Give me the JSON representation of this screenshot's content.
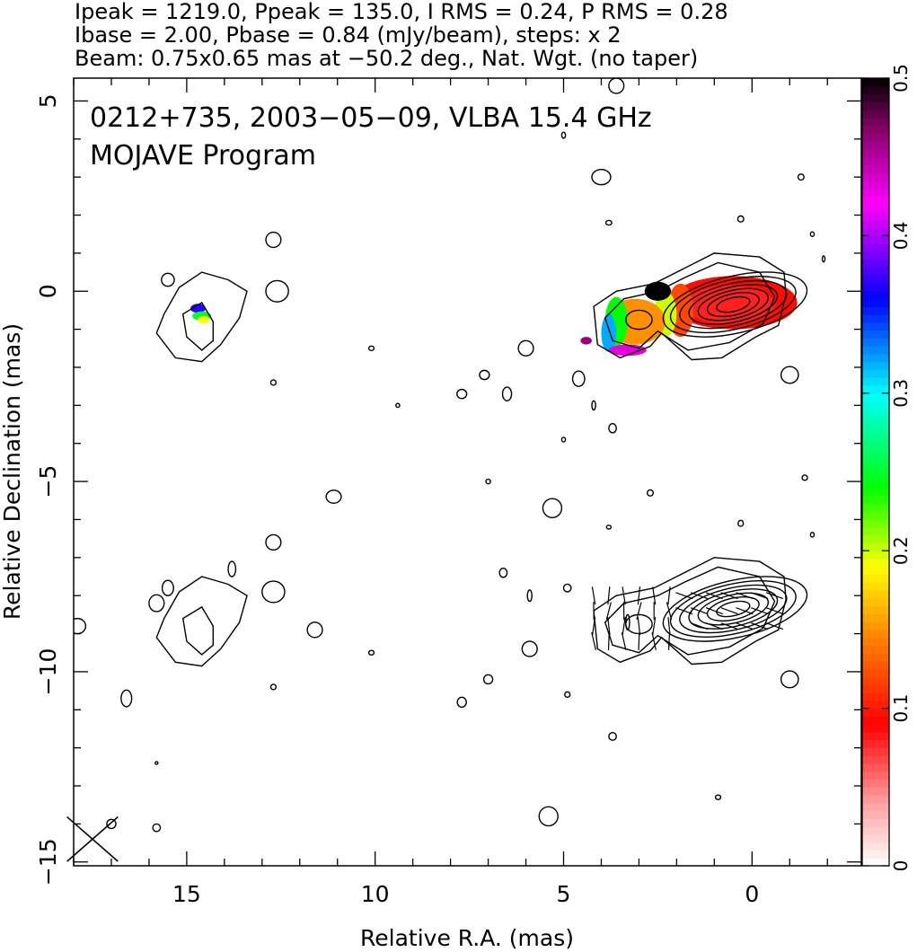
{
  "header": {
    "line1": "Ipeak = 1219.0, Ppeak = 135.0, I RMS = 0.24, P RMS = 0.28",
    "line2": "Ibase = 2.00, Pbase = 0.84 (mJy/beam), steps: x 2",
    "line3": "Beam: 0.75x0.65 mas at −50.2 deg., Nat. Wgt. (no taper)"
  },
  "annotations": {
    "source": "0212+735, 2003−05−09, VLBA 15.4 GHz",
    "program": "MOJAVE Program"
  },
  "chart_data": {
    "type": "heatmap",
    "xlabel": "Relative R.A. (mas)",
    "ylabel": "Relative Declination (mas)",
    "xlim": [
      18,
      -2.9
    ],
    "ylim": [
      -15.1,
      5.6
    ],
    "x_ticks": [
      {
        "value": 15,
        "label": "15"
      },
      {
        "value": 10,
        "label": "10"
      },
      {
        "value": 5,
        "label": "5"
      },
      {
        "value": 0,
        "label": "0"
      }
    ],
    "y_ticks": [
      {
        "value": 5,
        "label": "5"
      },
      {
        "value": 0,
        "label": "0"
      },
      {
        "value": -5,
        "label": "−5"
      },
      {
        "value": -10,
        "label": "−10"
      },
      {
        "value": -15,
        "label": "−15"
      }
    ],
    "colorbar": {
      "range": [
        0,
        0.5
      ],
      "ticks": [
        {
          "value": 0,
          "label": "0"
        },
        {
          "value": 0.1,
          "label": "0.1"
        },
        {
          "value": 0.2,
          "label": "0.2"
        },
        {
          "value": 0.3,
          "label": "0.3"
        },
        {
          "value": 0.4,
          "label": "0.4"
        },
        {
          "value": 0.5,
          "label": "0.5"
        }
      ],
      "stops": [
        {
          "v": 0.0,
          "color": "#ffffff"
        },
        {
          "v": 0.04,
          "color": "#ffa0a0"
        },
        {
          "v": 0.09,
          "color": "#ff0000"
        },
        {
          "v": 0.15,
          "color": "#ff9000"
        },
        {
          "v": 0.19,
          "color": "#ffff00"
        },
        {
          "v": 0.24,
          "color": "#00ff00"
        },
        {
          "v": 0.3,
          "color": "#00ffff"
        },
        {
          "v": 0.36,
          "color": "#0000ff"
        },
        {
          "v": 0.42,
          "color": "#ff00ff"
        },
        {
          "v": 0.47,
          "color": "#800060"
        },
        {
          "v": 0.5,
          "color": "#000000"
        }
      ]
    },
    "panels": [
      {
        "name": "fractional polarization",
        "core": [
          0.4,
          -0.35
        ],
        "offset_dec": 0
      },
      {
        "name": "EVPA",
        "core": [
          0.4,
          -0.35
        ],
        "offset_dec": -8.0
      }
    ],
    "core_contours": [
      {
        "cx": 0.45,
        "cy": -0.35,
        "rx": 1.95,
        "ry": 0.75
      },
      {
        "cx": 0.5,
        "cy": -0.35,
        "rx": 1.7,
        "ry": 0.65
      },
      {
        "cx": 0.5,
        "cy": -0.35,
        "rx": 1.45,
        "ry": 0.55
      },
      {
        "cx": 0.5,
        "cy": -0.35,
        "rx": 1.2,
        "ry": 0.46
      },
      {
        "cx": 0.5,
        "cy": -0.35,
        "rx": 0.95,
        "ry": 0.37
      },
      {
        "cx": 0.5,
        "cy": -0.35,
        "rx": 0.7,
        "ry": 0.28
      },
      {
        "cx": 0.5,
        "cy": -0.35,
        "rx": 0.45,
        "ry": 0.18
      }
    ],
    "jet_knot": {
      "cx": 3.0,
      "cy": -0.75,
      "rx": 0.35,
      "ry": 0.25
    },
    "outer_envelope": [
      [
        -0.9,
        -0.1
      ],
      [
        -0.85,
        0.5
      ],
      [
        -0.2,
        0.9
      ],
      [
        1.0,
        1.0
      ],
      [
        1.9,
        0.55
      ],
      [
        2.6,
        0.2
      ],
      [
        3.6,
        0.0
      ],
      [
        4.2,
        -0.4
      ],
      [
        4.1,
        -1.4
      ],
      [
        3.5,
        -1.75
      ],
      [
        2.7,
        -1.45
      ],
      [
        2.4,
        -1.1
      ],
      [
        1.6,
        -1.8
      ],
      [
        0.8,
        -1.75
      ],
      [
        -0.1,
        -1.2
      ],
      [
        -0.7,
        -0.9
      ]
    ],
    "inner_envelope": [
      [
        -0.6,
        -0.15
      ],
      [
        -0.2,
        0.5
      ],
      [
        0.9,
        0.75
      ],
      [
        1.8,
        0.35
      ],
      [
        2.5,
        0.0
      ],
      [
        3.4,
        -0.2
      ],
      [
        3.9,
        -0.7
      ],
      [
        3.7,
        -1.3
      ],
      [
        3.0,
        -1.5
      ],
      [
        2.5,
        -1.05
      ],
      [
        1.7,
        -1.55
      ],
      [
        0.6,
        -1.35
      ],
      [
        -0.3,
        -0.85
      ]
    ],
    "western_component": [
      [
        13.9,
        0.3
      ],
      [
        14.6,
        0.5
      ],
      [
        15.2,
        0.1
      ],
      [
        15.6,
        -0.6
      ],
      [
        15.8,
        -1.1
      ],
      [
        15.3,
        -1.75
      ],
      [
        14.6,
        -1.85
      ],
      [
        14.1,
        -1.4
      ],
      [
        13.6,
        -0.7
      ],
      [
        13.4,
        0.0
      ]
    ],
    "western_inner": [
      [
        14.6,
        -0.3
      ],
      [
        15.1,
        -0.6
      ],
      [
        15.0,
        -1.2
      ],
      [
        14.6,
        -1.55
      ],
      [
        14.3,
        -1.3
      ],
      [
        14.3,
        -0.8
      ]
    ],
    "pol_pixels": [
      {
        "cx": 0.5,
        "cy": -0.3,
        "rx": 1.7,
        "ry": 0.7,
        "v": 0.095
      },
      {
        "cx": 0.6,
        "cy": -0.35,
        "rx": 1.2,
        "ry": 0.5,
        "v": 0.08
      },
      {
        "cx": 1.9,
        "cy": -0.5,
        "rx": 0.35,
        "ry": 0.7,
        "v": 0.12
      },
      {
        "cx": 2.3,
        "cy": -0.6,
        "rx": 0.3,
        "ry": 0.6,
        "v": 0.2
      },
      {
        "cx": 2.5,
        "cy": 0.0,
        "rx": 0.35,
        "ry": 0.25,
        "v": 0.5
      },
      {
        "cx": 3.1,
        "cy": -0.8,
        "rx": 0.8,
        "ry": 0.6,
        "v": 0.15
      },
      {
        "cx": 3.6,
        "cy": -0.8,
        "rx": 0.3,
        "ry": 0.65,
        "v": 0.24
      },
      {
        "cx": 3.8,
        "cy": -1.1,
        "rx": 0.2,
        "ry": 0.5,
        "v": 0.32
      },
      {
        "cx": 3.3,
        "cy": -1.55,
        "rx": 0.5,
        "ry": 0.15,
        "v": 0.43
      },
      {
        "cx": 4.4,
        "cy": -1.3,
        "rx": 0.15,
        "ry": 0.1,
        "v": 0.46
      },
      {
        "cx": 14.7,
        "cy": -0.45,
        "rx": 0.2,
        "ry": 0.12,
        "v": 0.37
      },
      {
        "cx": 14.6,
        "cy": -0.65,
        "rx": 0.25,
        "ry": 0.12,
        "v": 0.25
      },
      {
        "cx": 14.55,
        "cy": -0.75,
        "rx": 0.15,
        "ry": 0.1,
        "v": 0.19
      }
    ],
    "noise_blobs": [
      [
        3.6,
        5.4,
        0.2,
        0.2
      ],
      [
        5.0,
        4.1,
        0.05,
        0.08
      ],
      [
        4.0,
        3.0,
        0.25,
        0.2
      ],
      [
        3.8,
        1.8,
        0.08,
        0.06
      ],
      [
        0.3,
        1.9,
        0.08,
        0.08
      ],
      [
        -1.3,
        3.0,
        0.08,
        0.08
      ],
      [
        -1.6,
        1.5,
        0.05,
        0.06
      ],
      [
        -1.9,
        0.85,
        0.03,
        0.08
      ],
      [
        6.0,
        -1.5,
        0.2,
        0.2
      ],
      [
        7.1,
        -2.2,
        0.13,
        0.12
      ],
      [
        7.7,
        -2.7,
        0.13,
        0.12
      ],
      [
        6.5,
        -2.7,
        0.12,
        0.18
      ],
      [
        4.6,
        -2.3,
        0.16,
        0.2
      ],
      [
        3.7,
        -3.6,
        0.1,
        0.12
      ],
      [
        4.2,
        -3.0,
        0.05,
        0.12
      ],
      [
        5.0,
        -3.9,
        0.05,
        0.06
      ],
      [
        7.0,
        -5.0,
        0.06,
        0.06
      ],
      [
        2.7,
        -5.3,
        0.08,
        0.08
      ],
      [
        5.3,
        -5.7,
        0.25,
        0.25
      ],
      [
        3.8,
        -6.2,
        0.06,
        0.05
      ],
      [
        6.6,
        -7.4,
        0.1,
        0.12
      ],
      [
        4.9,
        -7.8,
        0.1,
        0.1
      ],
      [
        5.9,
        -8.0,
        0.06,
        0.15
      ],
      [
        3.3,
        -8.7,
        0.05,
        0.2
      ],
      [
        10.1,
        -1.5,
        0.07,
        0.06
      ],
      [
        9.4,
        -3.0,
        0.05,
        0.05
      ],
      [
        12.7,
        -2.4,
        0.07,
        0.07
      ],
      [
        11.1,
        -5.4,
        0.2,
        0.17
      ],
      [
        12.7,
        -6.6,
        0.2,
        0.2
      ],
      [
        12.7,
        1.35,
        0.2,
        0.2
      ],
      [
        12.6,
        0.0,
        0.3,
        0.28
      ],
      [
        15.5,
        0.3,
        0.17,
        0.17
      ],
      [
        -1.0,
        -2.2,
        0.23,
        0.22
      ],
      [
        -1.4,
        -4.9,
        0.07,
        0.07
      ],
      [
        -1.6,
        -6.4,
        0.05,
        0.06
      ],
      [
        0.3,
        -6.1,
        0.07,
        0.08
      ],
      [
        5.9,
        -9.4,
        0.2,
        0.2
      ],
      [
        7.0,
        -10.2,
        0.12,
        0.12
      ],
      [
        4.9,
        -10.6,
        0.07,
        0.07
      ],
      [
        7.7,
        -10.8,
        0.12,
        0.13
      ],
      [
        3.7,
        -11.7,
        0.1,
        0.1
      ],
      [
        0.9,
        -13.3,
        0.07,
        0.06
      ],
      [
        5.4,
        -13.8,
        0.25,
        0.25
      ],
      [
        -1.0,
        -10.2,
        0.23,
        0.22
      ],
      [
        10.1,
        -9.5,
        0.07,
        0.06
      ],
      [
        11.6,
        -8.9,
        0.2,
        0.2
      ],
      [
        12.7,
        -10.4,
        0.07,
        0.07
      ],
      [
        12.7,
        -7.9,
        0.3,
        0.28
      ],
      [
        13.8,
        -7.3,
        0.1,
        0.2
      ],
      [
        15.5,
        -7.8,
        0.15,
        0.2
      ],
      [
        15.8,
        -8.2,
        0.2,
        0.22
      ],
      [
        17.9,
        -8.8,
        0.22,
        0.2
      ],
      [
        16.6,
        -10.7,
        0.14,
        0.22
      ],
      [
        17.0,
        -14.0,
        0.12,
        0.12
      ],
      [
        15.8,
        -14.1,
        0.1,
        0.1
      ],
      [
        15.8,
        -12.4,
        0.02,
        0.02
      ]
    ],
    "beam": {
      "x": 17.5,
      "y": -14.4,
      "bmaj": 0.75,
      "bmin": 0.65,
      "pa": -50.2
    }
  }
}
